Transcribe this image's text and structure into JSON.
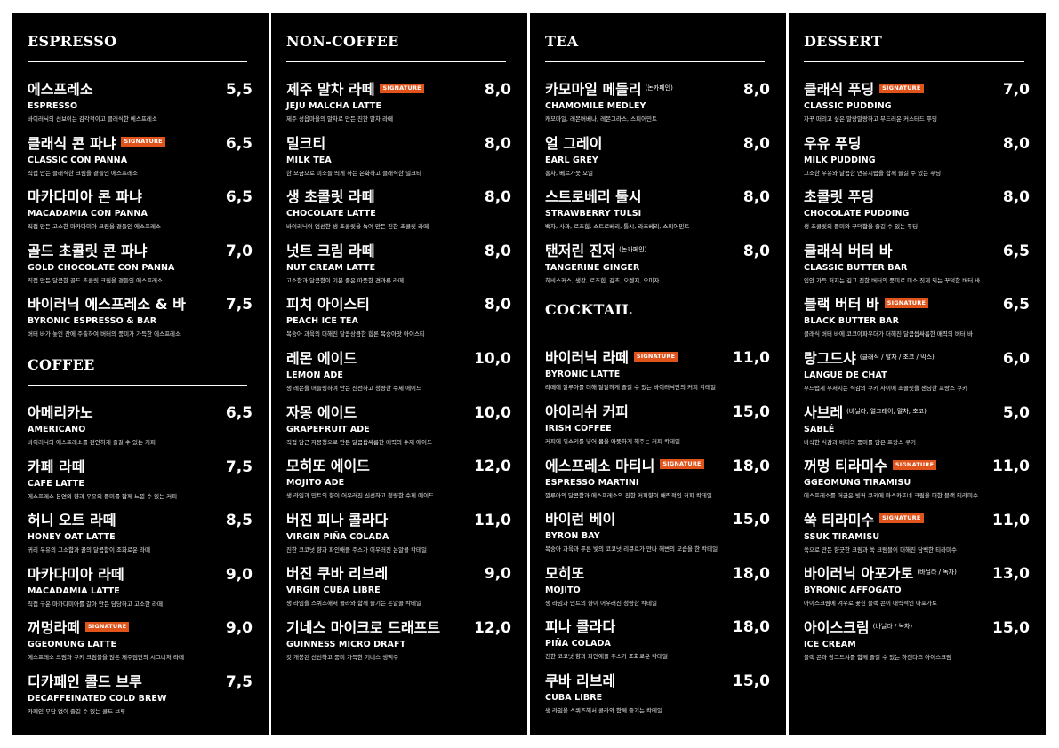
{
  "colors": {
    "background": "#000000",
    "text": "#ffffff",
    "badge": "#e0541c"
  },
  "signature_label": "SIGNATURE",
  "columns": [
    {
      "sections": [
        {
          "title": "ESPRESSO",
          "items": [
            {
              "ko": "에스프레소",
              "sub": "",
              "sig": false,
              "price": "5,5",
              "en": "ESPRESSO",
              "desc": "바이러닉의 선보이는 감각적이고 클래식한 에스프레소"
            },
            {
              "ko": "클래식 콘 파냐",
              "sub": "",
              "sig": true,
              "price": "6,5",
              "en": "CLASSIC CON PANNA",
              "desc": "직접 만든 클래식한 크림을 곁들인 에스프레소"
            },
            {
              "ko": "마카다미아 콘 파냐",
              "sub": "",
              "sig": false,
              "price": "6,5",
              "en": "MACADAMIA CON PANNA",
              "desc": "직접 만든 고소한 마카다미아 크림을 곁들인 에스프레소"
            },
            {
              "ko": "골드 초콜릿 콘 파냐",
              "sub": "",
              "sig": false,
              "price": "7,0",
              "en": "GOLD CHOCOLATE CON PANNA",
              "desc": "직접 만든 달콤한 골드 초콜릿 크림을 곁들인 에스프레소"
            },
            {
              "ko": "바이러닉 에스프레소 & 바",
              "sub": "",
              "sig": false,
              "price": "7,5",
              "en": "BYRONIC ESPRESSO & BAR",
              "desc": "버터 바가 놓인 잔에 주출하여 버터의 풍미가 가득한 에스프레소"
            }
          ]
        },
        {
          "title": "COFFEE",
          "items": [
            {
              "ko": "아메리카노",
              "sub": "",
              "sig": false,
              "price": "6,5",
              "en": "AMERICANO",
              "desc": "바이러닉의 에스프레소를 편안하게 즐길 수 있는 커피"
            },
            {
              "ko": "카페 라떼",
              "sub": "",
              "sig": false,
              "price": "7,5",
              "en": "CAFE LATTE",
              "desc": "에스프레소 본연의 향과 우유의 풍미를 함께 느낄 수 있는 커피"
            },
            {
              "ko": "허니 오트 라떼",
              "sub": "",
              "sig": false,
              "price": "8,5",
              "en": "HONEY OAT LATTE",
              "desc": "귀리 우유의 고소함과 꿀의 달콤함이 조화로운 라떼"
            },
            {
              "ko": "마카다미아 라떼",
              "sub": "",
              "sig": false,
              "price": "9,0",
              "en": "MACADAMIA LATTE",
              "desc": "직접 구운 마카다미아를 갈아 만든 담당하고 고소한 라떼"
            },
            {
              "ko": "꺼멍라떼",
              "sub": "",
              "sig": true,
              "price": "9,0",
              "en": "GGEOMUNG LATTE",
              "desc": "에스프레소 크림과 쿠키 크럼블을 얹은 제주점만의 시그니처 라떼"
            },
            {
              "ko": "디카페인 콜드 브루",
              "sub": "",
              "sig": false,
              "price": "7,5",
              "en": "DECAFFEINATED COLD BREW",
              "desc": "카페인 부담 없이 즐길 수 있는 콜드 브루"
            }
          ]
        }
      ]
    },
    {
      "sections": [
        {
          "title": "NON-COFFEE",
          "items": [
            {
              "ko": "제주 말차 라떼",
              "sub": "",
              "sig": true,
              "price": "8,0",
              "en": "JEJU MALCHA LATTE",
              "desc": "제주 성읍마을의 말차로 만든 진한 말차 라떼"
            },
            {
              "ko": "밀크티",
              "sub": "",
              "sig": false,
              "price": "8,0",
              "en": "MILK TEA",
              "desc": "한 모금으로 미소를 띄게 하는 은화하고 클래식한 밀크티"
            },
            {
              "ko": "생 초콜릿 라떼",
              "sub": "",
              "sig": false,
              "price": "8,0",
              "en": "CHOCOLATE LATTE",
              "desc": "바이러닉이 엄선한 생 초콜릿을 녹여 만든 진한 초콜릿 라떼"
            },
            {
              "ko": "넛트 크림 라떼",
              "sub": "",
              "sig": false,
              "price": "8,0",
              "en": "NUT CREAM LATTE",
              "desc": "고소함과 달콤함이 기분 좋은 따뜻한 견과류 라떼"
            },
            {
              "ko": "피치 아이스티",
              "sub": "",
              "sig": false,
              "price": "8,0",
              "en": "PEACH ICE TEA",
              "desc": "복숭아 과육의 더해진 달콤상큼한 힙론 복숭아맛 아이스티"
            },
            {
              "ko": "레몬 에이드",
              "sub": "",
              "sig": false,
              "price": "10,0",
              "en": "LEMON ADE",
              "desc": "생 레몬을 머들링하여 만든 신선하고 청량한 수제 에이드"
            },
            {
              "ko": "자몽 에이드",
              "sub": "",
              "sig": false,
              "price": "10,0",
              "en": "GRAPEFRUIT ADE",
              "desc": "직접 담근 자몽청으로 만든 달콤쌉싸름한 매력의 수제 에이드"
            },
            {
              "ko": "모히또 에이드",
              "sub": "",
              "sig": false,
              "price": "12,0",
              "en": "MOJITO ADE",
              "desc": "생 라임과 민트의 향이 어우러진 신선하고 청량한 수제 에이드"
            },
            {
              "ko": "버진 피나 콜라다",
              "sub": "",
              "sig": false,
              "price": "11,0",
              "en": "VIRGIN PIÑA COLADA",
              "desc": "진한 코코넛 향과 파인애플 주스가 어우러진 논알콜 칵테일"
            },
            {
              "ko": "버진 쿠바 리브레",
              "sub": "",
              "sig": false,
              "price": "9,0",
              "en": "VIRGIN CUBA LIBRE",
              "desc": "생 라임을 스퀴즈해서 콜라와 함께 즐기는 논알콜 칵테일"
            },
            {
              "ko": "기네스 마이크로 드래프트",
              "sub": "",
              "sig": false,
              "price": "12,0",
              "en": "GUINNESS MICRO DRAFT",
              "desc": "갓 개봉된 신선하고 풍미 가득한 기네스 생맥주"
            }
          ]
        }
      ]
    },
    {
      "sections": [
        {
          "title": "TEA",
          "items": [
            {
              "ko": "카모마일 메들리",
              "sub": "(논카페인)",
              "sig": false,
              "price": "8,0",
              "en": "CHAMOMILE MEDLEY",
              "desc": "캐모마일, 레몬버베나, 레몬그라스, 스피어민트"
            },
            {
              "ko": "얼 그레이",
              "sub": "",
              "sig": false,
              "price": "8,0",
              "en": "EARL GREY",
              "desc": "홍차, 베르가못 오일"
            },
            {
              "ko": "스트로베리 툴시",
              "sub": "",
              "sig": false,
              "price": "8,0",
              "en": "STRAWBERRY TULSI",
              "desc": "백차, 사과, 로즈힙, 스트로베리, 툴시, 라즈베리, 스피어민트"
            },
            {
              "ko": "탠저린 진저",
              "sub": "(논카페인)",
              "sig": false,
              "price": "8,0",
              "en": "TANGERINE GINGER",
              "desc": "히비스커스, 생강, 로즈힙, 감초, 오렌지, 오미자"
            }
          ]
        },
        {
          "title": "COCKTAIL",
          "items": [
            {
              "ko": "바이러닉 라떼",
              "sub": "",
              "sig": true,
              "price": "11,0",
              "en": "BYRONIC LATTE",
              "desc": "라떼에 깔루아를 더해 달달하게 즐길 수 있는 바이러닉만의 커피 칵테일"
            },
            {
              "ko": "아이리쉬 커피",
              "sub": "",
              "sig": false,
              "price": "15,0",
              "en": "IRISH COFFEE",
              "desc": "커피에 위스키를 넣어 몸을 따뜻하게 해주는 커피 칵테일"
            },
            {
              "ko": "에스프레소 마티니",
              "sub": "",
              "sig": true,
              "price": "18,0",
              "en": "ESPRESSO MARTINI",
              "desc": "깔루아의 달콤함과 에스프레소의 진한 커피향이 매력적인 커피 칵테일"
            },
            {
              "ko": "바이런 베이",
              "sub": "",
              "sig": false,
              "price": "15,0",
              "en": "BYRON BAY",
              "desc": "복숭아 과육과 푸른 빛의 코코넛 리큐르가 만나 해변의 모습을 한 칵테일"
            },
            {
              "ko": "모히또",
              "sub": "",
              "sig": false,
              "price": "18,0",
              "en": "MOJITO",
              "desc": "생 라임과 민트의 향이 어우러진 청량한 칵테일"
            },
            {
              "ko": "피나 콜라다",
              "sub": "",
              "sig": false,
              "price": "18,0",
              "en": "PIÑA COLADA",
              "desc": "진한 코코넛 향과 파인애플 주스가 조화로운 칵테일"
            },
            {
              "ko": "쿠바 리브레",
              "sub": "",
              "sig": false,
              "price": "15,0",
              "en": "CUBA LIBRE",
              "desc": "생 라임을 스퀴즈해서 콜라와 함께 즐기는 칵테일"
            }
          ]
        }
      ]
    },
    {
      "sections": [
        {
          "title": "DESSERT",
          "items": [
            {
              "ko": "클래식 푸딩",
              "sub": "",
              "sig": true,
              "price": "7,0",
              "en": "CLASSIC PUDDING",
              "desc": "자꾸 떠리고 싶은 말랑말랑하고 부드러운 커스터드 푸딩"
            },
            {
              "ko": "우유 푸딩",
              "sub": "",
              "sig": false,
              "price": "8,0",
              "en": "MILK PUDDING",
              "desc": "고소한 우유와 달콤한 연유시럽을 함께 즐길 수 있는 푸딩"
            },
            {
              "ko": "초콜릿 푸딩",
              "sub": "",
              "sig": false,
              "price": "8,0",
              "en": "CHOCOLATE PUDDING",
              "desc": "생 초콜릿의 풍미와 꾸덕함을 즐길 수 있는 푸딩"
            },
            {
              "ko": "클래식 버터 바",
              "sub": "",
              "sig": false,
              "price": "6,5",
              "en": "CLASSIC BUTTER BAR",
              "desc": "입안 가득 퍼지는 깊고 진한 버터의 풍미로 미소 짓게 되는 꾸덕한 버터 바"
            },
            {
              "ko": "블랙 버터 바",
              "sub": "",
              "sig": true,
              "price": "6,5",
              "en": "BLACK BUTTER BAR",
              "desc": "클래식 버터 바에 코코아파우더가 더해진 달콤쌉싸름한 매력의 버터 바"
            },
            {
              "ko": "랑그드샤",
              "sub": "(클래식 / 말차 / 초코 / 믹스)",
              "sig": false,
              "price": "6,0",
              "en": "LANGUE DE CHAT",
              "desc": "부드럽게 부서지는 식감의 쿠키 사이에 초콜릿을 샌딩한 프랑스 쿠키"
            },
            {
              "ko": "사브레",
              "sub": "(바닐라, 얼그레이, 말차, 초코)",
              "sig": false,
              "price": "5,0",
              "en": "SABLÉ",
              "desc": "바삭한 식감과 버터의 풍미를 담은 프랑스 쿠키"
            },
            {
              "ko": "꺼멍 티라미수",
              "sub": "",
              "sig": true,
              "price": "11,0",
              "en": "GGEOMUNG TIRAMISU",
              "desc": "에스프레소를 머금은 빙커 쿠키에 마스카포네 크림을 더한 블랙 티라미수"
            },
            {
              "ko": "쑥 티라미수",
              "sub": "",
              "sig": true,
              "price": "11,0",
              "en": "SSUK TIRAMISU",
              "desc": "쑥으로 만든 향긋한 크림과 쑥 크럼블이 더해진 담백한 티라미수"
            },
            {
              "ko": "바이러닉 아포가토",
              "sub": "(바닐라 / 녹차)",
              "sig": false,
              "price": "13,0",
              "en": "BYRONIC AFFOGATO",
              "desc": "아이스크림에 겨우로 꽃힌 블랙 콘이 매력적인 아포가토"
            },
            {
              "ko": "아이스크림",
              "sub": "(바닐라 / 녹차)",
              "sig": false,
              "price": "15,0",
              "en": "ICE CREAM",
              "desc": "블랙 콘과 랑그드샤를 함께 즐길 수 있는 하겐다즈 아이스크림"
            }
          ]
        }
      ]
    }
  ]
}
